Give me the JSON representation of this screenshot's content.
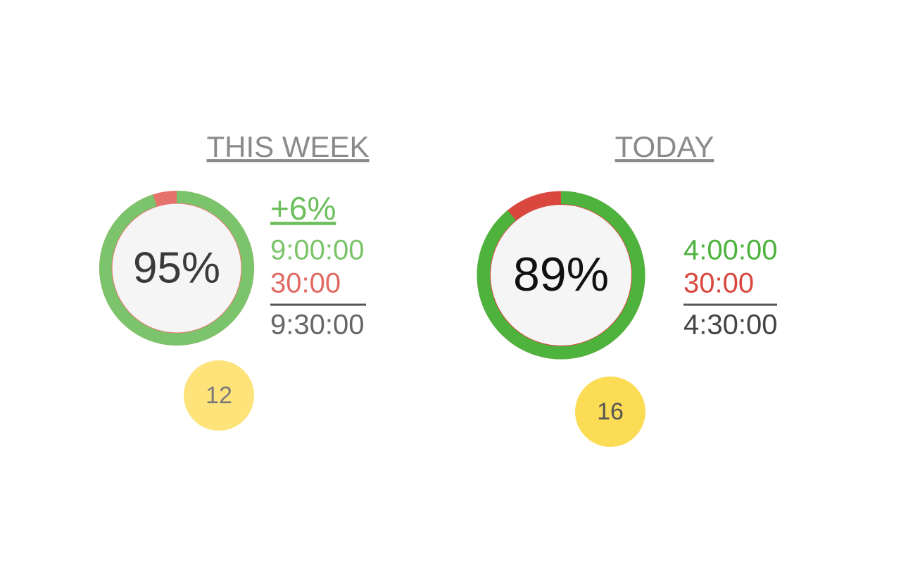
{
  "panels": [
    {
      "title": "THIS WEEK",
      "ring": {
        "value": 95,
        "label": "95%"
      },
      "change": "+6%",
      "stats": [
        "9:00:00",
        "30:00"
      ],
      "total": "9:30:00",
      "badge": "12"
    },
    {
      "title": "TODAY",
      "ring": {
        "value": 89,
        "label": "89%"
      },
      "stats": [
        "4:00:00",
        "30:00"
      ],
      "total": "4:30:00",
      "badge": "16"
    }
  ]
}
